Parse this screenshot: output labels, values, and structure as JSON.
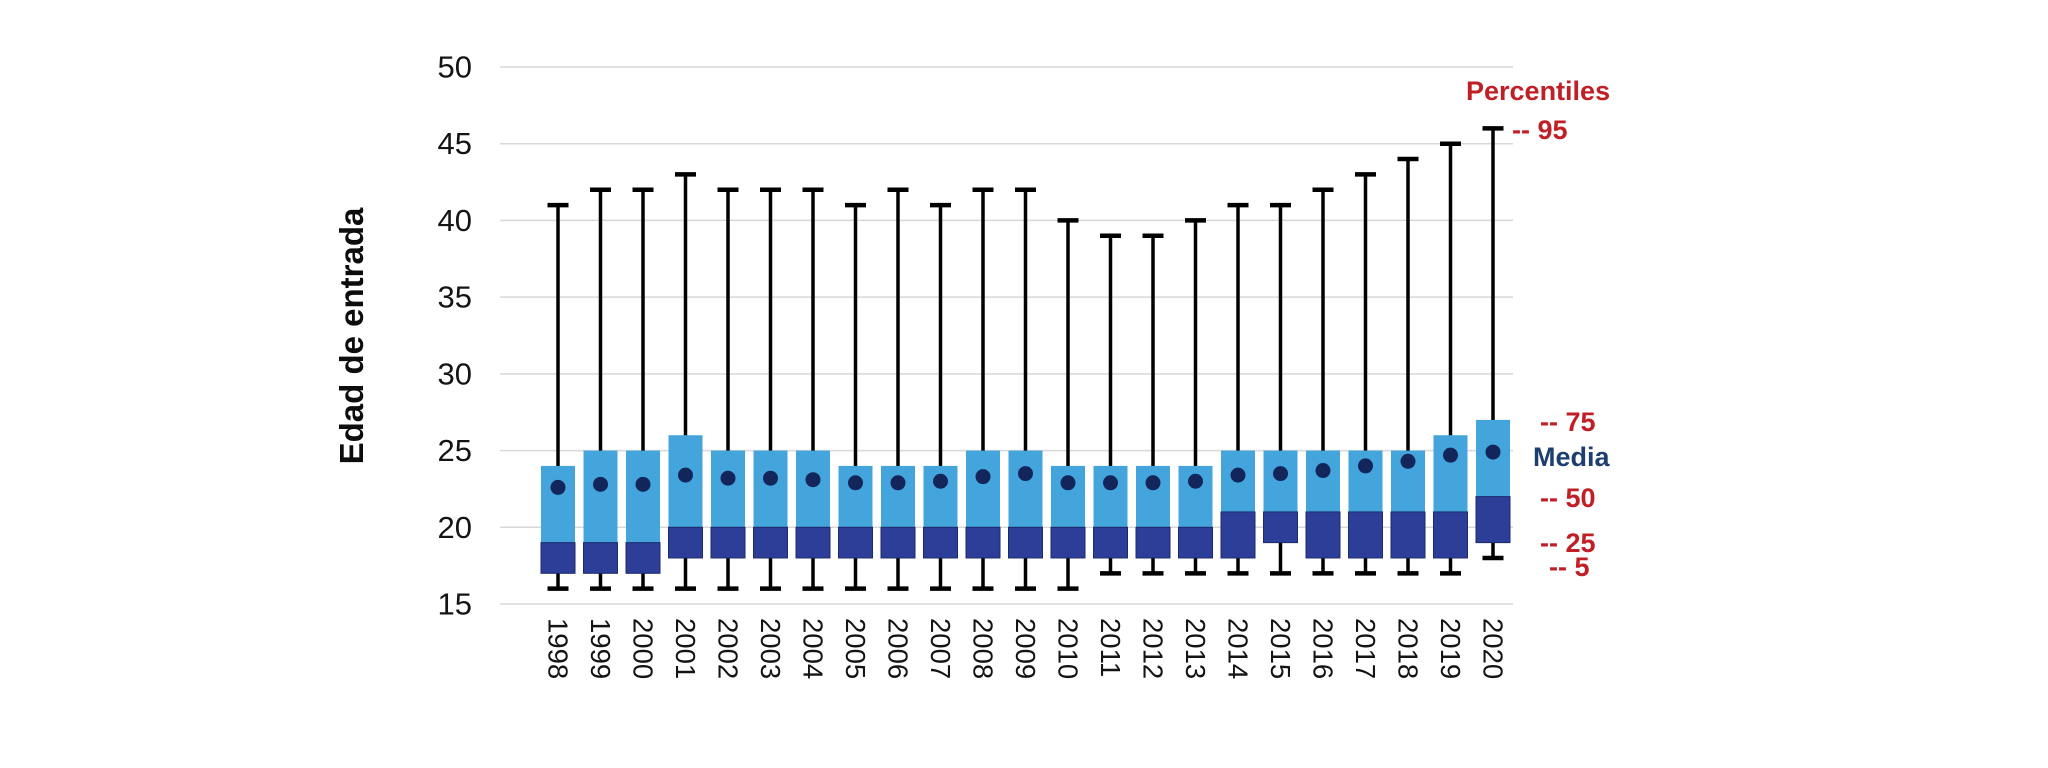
{
  "chart_data": {
    "type": "boxplot",
    "title": "",
    "xlabel": "",
    "ylabel": "Edad de entrada",
    "ylim": [
      15,
      50
    ],
    "yticks": [
      50,
      45,
      40,
      35,
      30,
      25,
      20,
      15
    ],
    "grid": true,
    "legend_position": "right",
    "categories": [
      "1998",
      "1999",
      "2000",
      "2001",
      "2002",
      "2003",
      "2004",
      "2005",
      "2006",
      "2007",
      "2008",
      "2009",
      "2010",
      "2011",
      "2012",
      "2013",
      "2014",
      "2015",
      "2016",
      "2017",
      "2018",
      "2019",
      "2020"
    ],
    "series": [
      {
        "year": "1998",
        "p5": 16,
        "p25": 17,
        "p50": 19,
        "p75": 24,
        "p95": 41,
        "mean": 22.6
      },
      {
        "year": "1999",
        "p5": 16,
        "p25": 17,
        "p50": 19,
        "p75": 25,
        "p95": 42,
        "mean": 22.8
      },
      {
        "year": "2000",
        "p5": 16,
        "p25": 17,
        "p50": 19,
        "p75": 25,
        "p95": 42,
        "mean": 22.8
      },
      {
        "year": "2001",
        "p5": 16,
        "p25": 18,
        "p50": 20,
        "p75": 26,
        "p95": 43,
        "mean": 23.4
      },
      {
        "year": "2002",
        "p5": 16,
        "p25": 18,
        "p50": 20,
        "p75": 25,
        "p95": 42,
        "mean": 23.2
      },
      {
        "year": "2003",
        "p5": 16,
        "p25": 18,
        "p50": 20,
        "p75": 25,
        "p95": 42,
        "mean": 23.2
      },
      {
        "year": "2004",
        "p5": 16,
        "p25": 18,
        "p50": 20,
        "p75": 25,
        "p95": 42,
        "mean": 23.1
      },
      {
        "year": "2005",
        "p5": 16,
        "p25": 18,
        "p50": 20,
        "p75": 24,
        "p95": 41,
        "mean": 22.9
      },
      {
        "year": "2006",
        "p5": 16,
        "p25": 18,
        "p50": 20,
        "p75": 24,
        "p95": 42,
        "mean": 22.9
      },
      {
        "year": "2007",
        "p5": 16,
        "p25": 18,
        "p50": 20,
        "p75": 24,
        "p95": 41,
        "mean": 23.0
      },
      {
        "year": "2008",
        "p5": 16,
        "p25": 18,
        "p50": 20,
        "p75": 25,
        "p95": 42,
        "mean": 23.3
      },
      {
        "year": "2009",
        "p5": 16,
        "p25": 18,
        "p50": 20,
        "p75": 25,
        "p95": 42,
        "mean": 23.5
      },
      {
        "year": "2010",
        "p5": 16,
        "p25": 18,
        "p50": 20,
        "p75": 24,
        "p95": 40,
        "mean": 22.9
      },
      {
        "year": "2011",
        "p5": 17,
        "p25": 18,
        "p50": 20,
        "p75": 24,
        "p95": 39,
        "mean": 22.9
      },
      {
        "year": "2012",
        "p5": 17,
        "p25": 18,
        "p50": 20,
        "p75": 24,
        "p95": 39,
        "mean": 22.9
      },
      {
        "year": "2013",
        "p5": 17,
        "p25": 18,
        "p50": 20,
        "p75": 24,
        "p95": 40,
        "mean": 23.0
      },
      {
        "year": "2014",
        "p5": 17,
        "p25": 18,
        "p50": 21,
        "p75": 25,
        "p95": 41,
        "mean": 23.4
      },
      {
        "year": "2015",
        "p5": 17,
        "p25": 19,
        "p50": 21,
        "p75": 25,
        "p95": 41,
        "mean": 23.5
      },
      {
        "year": "2016",
        "p5": 17,
        "p25": 18,
        "p50": 21,
        "p75": 25,
        "p95": 42,
        "mean": 23.7
      },
      {
        "year": "2017",
        "p5": 17,
        "p25": 18,
        "p50": 21,
        "p75": 25,
        "p95": 43,
        "mean": 24.0
      },
      {
        "year": "2018",
        "p5": 17,
        "p25": 18,
        "p50": 21,
        "p75": 25,
        "p95": 44,
        "mean": 24.3
      },
      {
        "year": "2019",
        "p5": 17,
        "p25": 18,
        "p50": 21,
        "p75": 26,
        "p95": 45,
        "mean": 24.7
      },
      {
        "year": "2020",
        "p5": 18,
        "p25": 19,
        "p50": 22,
        "p75": 27,
        "p95": 46,
        "mean": 24.9
      }
    ]
  },
  "legend": {
    "title": "Percentiles",
    "p95_label": "-- 95",
    "p75_label": "-- 75",
    "media_label": "Media",
    "p50_label": "-- 50",
    "p25_label": "-- 25",
    "p5_label": "-- 5"
  },
  "colors": {
    "box_upper": "#44A5DC",
    "box_lower": "#2C3E98",
    "box_lower_border": "#1C2B6B",
    "mean_dot": "#12265C",
    "whisker": "#000000",
    "gridline": "#D8D8D8",
    "tick_text": "#141414",
    "legend_red": "#C01F26",
    "media_text": "#1D3F6F"
  }
}
